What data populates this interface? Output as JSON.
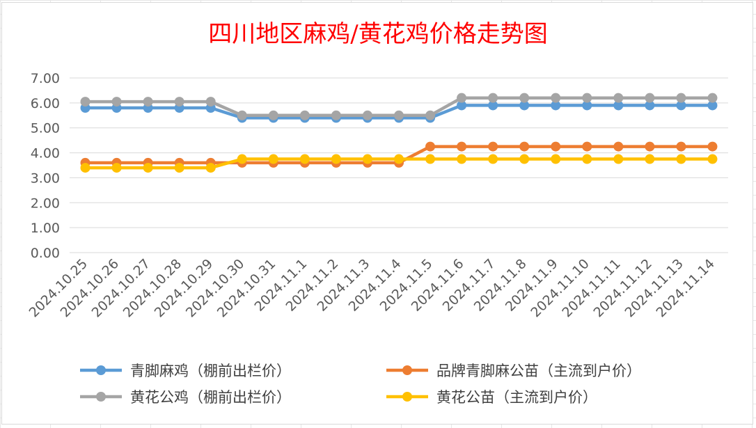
{
  "chart_data": {
    "type": "line",
    "title": "四川地区麻鸡/黄花鸡价格走势图",
    "xlabel": "",
    "ylabel": "",
    "ylim": [
      0,
      7
    ],
    "y_ticks": [
      "0.00",
      "1.00",
      "2.00",
      "3.00",
      "4.00",
      "5.00",
      "6.00",
      "7.00"
    ],
    "grid": true,
    "legend_position": "bottom",
    "categories": [
      "2024.10.25",
      "2024.10.26",
      "2024.10.27",
      "2024.10.28",
      "2024.10.29",
      "2024.10.30",
      "2024.10.31",
      "2024.11.1",
      "2024.11.2",
      "2024.11.3",
      "2024.11.4",
      "2024.11.5",
      "2024.11.6",
      "2024.11.7",
      "2024.11.8",
      "2024.11.9",
      "2024.11.10",
      "2024.11.11",
      "2024.11.12",
      "2024.11.13",
      "2024.11.14"
    ],
    "series": [
      {
        "name": "青脚麻鸡（棚前出栏价）",
        "color": "#5b9bd5",
        "values": [
          5.8,
          5.8,
          5.8,
          5.8,
          5.8,
          5.4,
          5.4,
          5.4,
          5.4,
          5.4,
          5.4,
          5.4,
          5.9,
          5.9,
          5.9,
          5.9,
          5.9,
          5.9,
          5.9,
          5.9,
          5.9
        ]
      },
      {
        "name": "品牌青脚麻公苗（主流到户价）",
        "color": "#ed7d31",
        "values": [
          3.6,
          3.6,
          3.6,
          3.6,
          3.6,
          3.6,
          3.6,
          3.6,
          3.6,
          3.6,
          3.6,
          4.25,
          4.25,
          4.25,
          4.25,
          4.25,
          4.25,
          4.25,
          4.25,
          4.25,
          4.25
        ]
      },
      {
        "name": "黄花公鸡（棚前出栏价）",
        "color": "#a5a5a5",
        "values": [
          6.05,
          6.05,
          6.05,
          6.05,
          6.05,
          5.5,
          5.5,
          5.5,
          5.5,
          5.5,
          5.5,
          5.5,
          6.2,
          6.2,
          6.2,
          6.2,
          6.2,
          6.2,
          6.2,
          6.2,
          6.2
        ]
      },
      {
        "name": "黄花公苗（主流到户价）",
        "color": "#ffc000",
        "values": [
          3.4,
          3.4,
          3.4,
          3.4,
          3.4,
          3.75,
          3.75,
          3.75,
          3.75,
          3.75,
          3.75,
          3.75,
          3.75,
          3.75,
          3.75,
          3.75,
          3.75,
          3.75,
          3.75,
          3.75,
          3.75
        ]
      }
    ]
  }
}
